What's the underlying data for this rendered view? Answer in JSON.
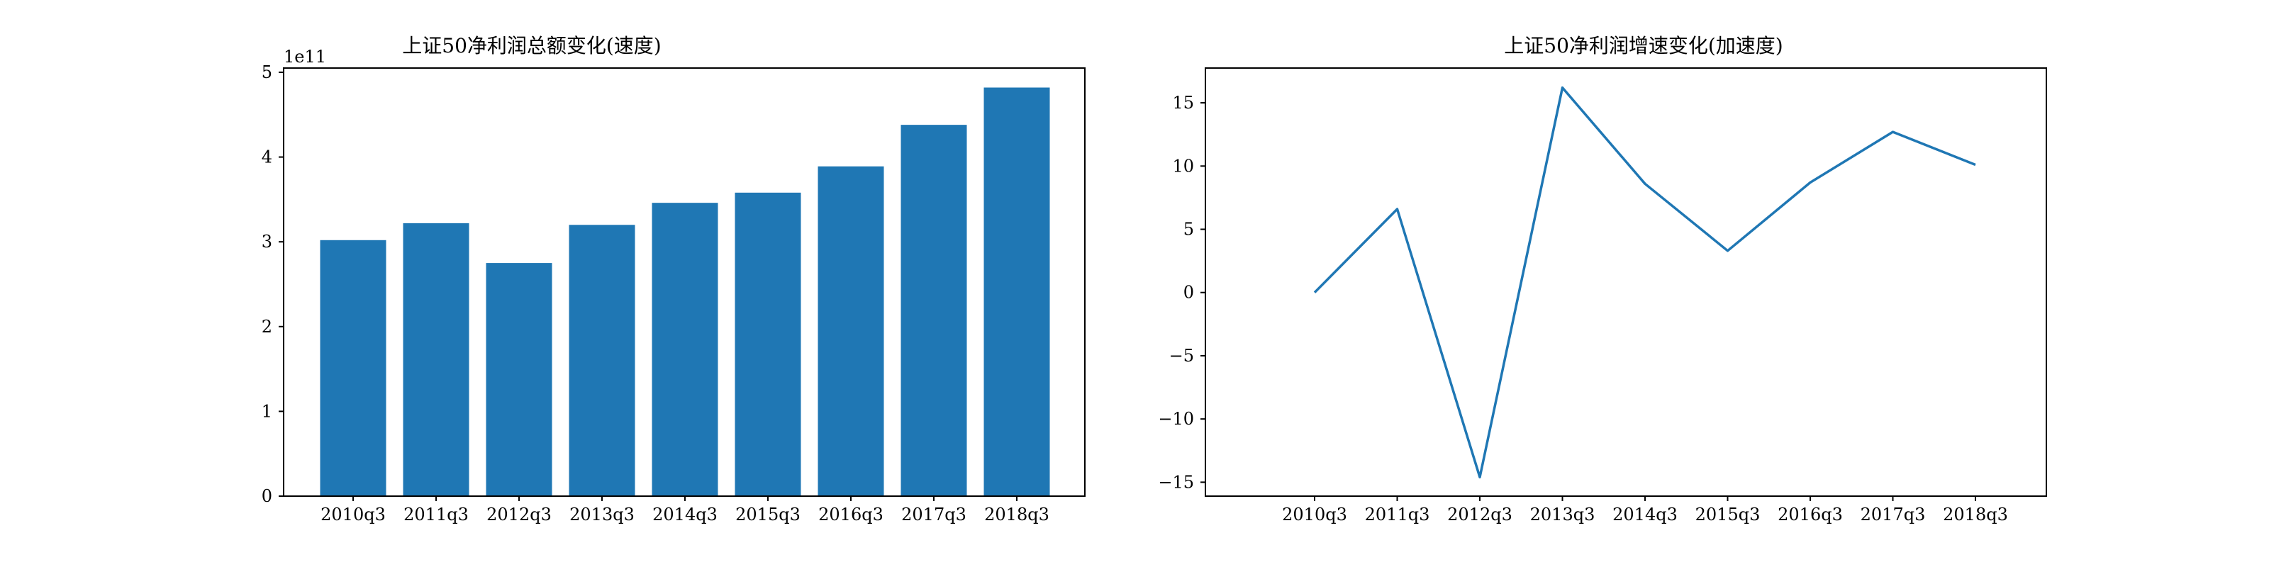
{
  "chart_data": [
    {
      "type": "bar",
      "title": "上证50净利润总额变化(速度)",
      "categories": [
        "2010q3",
        "2011q3",
        "2012q3",
        "2013q3",
        "2014q3",
        "2015q3",
        "2016q3",
        "2017q3",
        "2018q3"
      ],
      "values": [
        302000000000.0,
        322000000000.0,
        275000000000.0,
        320000000000.0,
        346000000000.0,
        358000000000.0,
        389000000000.0,
        438000000000.0,
        482000000000.0
      ],
      "y_offset_text": "1e11",
      "y_scale": 100000000000.0,
      "yticks": [
        0,
        1,
        2,
        3,
        4,
        5
      ],
      "ylim": [
        0,
        5.05
      ],
      "color": "#1f77b4"
    },
    {
      "type": "line",
      "title": "上证50净利润增速变化(加速度)",
      "categories": [
        "2010q3",
        "2011q3",
        "2012q3",
        "2013q3",
        "2014q3",
        "2015q3",
        "2016q3",
        "2017q3",
        "2018q3"
      ],
      "values": [
        0.0,
        6.6,
        -14.6,
        16.2,
        8.6,
        3.3,
        8.7,
        12.7,
        10.1
      ],
      "yticks": [
        -15,
        -10,
        -5,
        0,
        5,
        10,
        15
      ],
      "ylim": [
        -16.1,
        17.75
      ],
      "color": "#1f77b4"
    }
  ]
}
